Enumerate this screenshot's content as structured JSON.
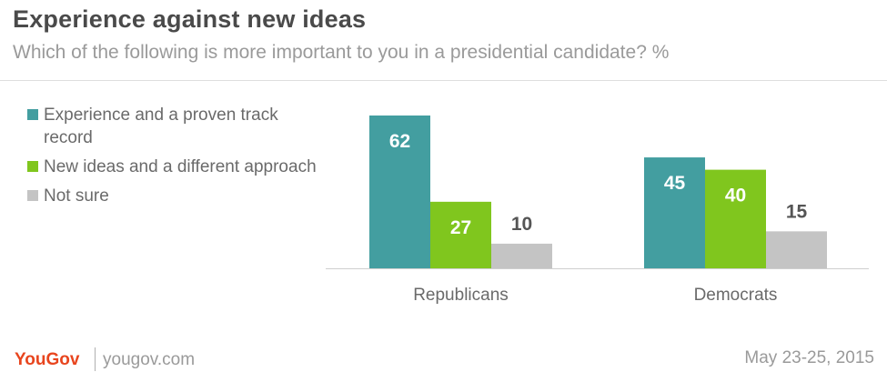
{
  "header": {
    "title": "Experience against new ideas",
    "subtitle": "Which of the following is more important to you in a presidential candidate? %"
  },
  "footer": {
    "brand": "YouGov",
    "site": "yougov.com",
    "date": "May 23-25, 2015"
  },
  "chart_data": {
    "type": "bar",
    "categories": [
      "Republicans",
      "Democrats"
    ],
    "series": [
      {
        "name": "Experience and a proven track record",
        "values": [
          62,
          45
        ],
        "color": "#439ea0"
      },
      {
        "name": "New ideas and a different approach",
        "values": [
          27,
          40
        ],
        "color": "#80c61e"
      },
      {
        "name": "Not sure",
        "values": [
          10,
          15
        ],
        "color": "#c4c4c4"
      }
    ],
    "ylim": [
      0,
      62
    ],
    "legend": "left",
    "grid": false
  }
}
